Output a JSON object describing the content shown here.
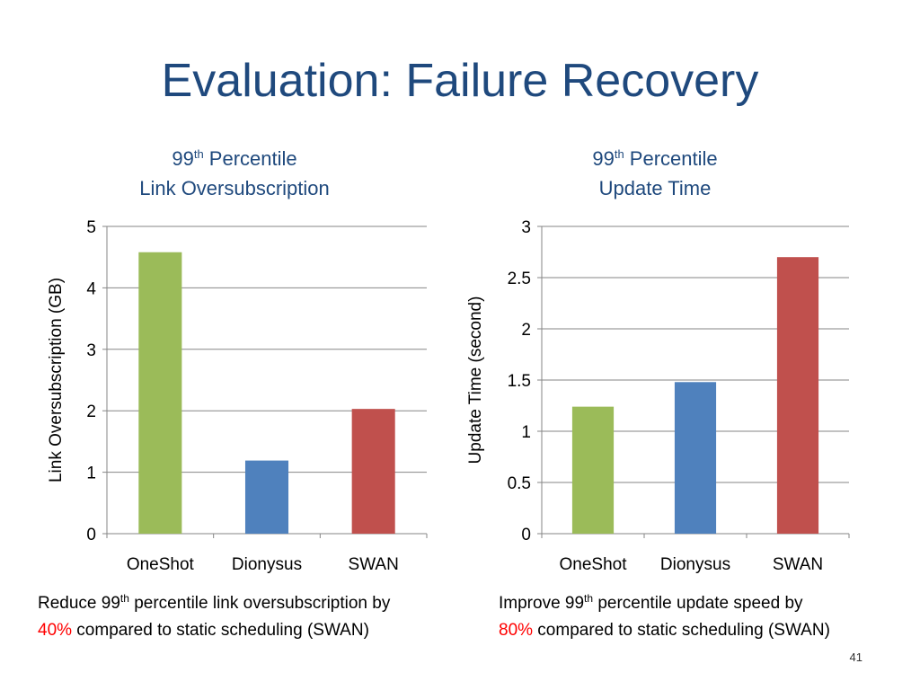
{
  "title": "Evaluation: Failure Recovery",
  "slide_number": "41",
  "colors": {
    "title": "#1f497d",
    "grid": "#868686",
    "highlight": "#ff0000"
  },
  "chart_data": [
    {
      "type": "bar",
      "title_lines": {
        "pre": "99",
        "sup": "th",
        "post": " Percentile",
        "line2": "Link Oversubscription"
      },
      "ylabel": "Link Oversubscription (GB)",
      "xlabel": "",
      "categories": [
        "OneShot",
        "Dionysus",
        "SWAN"
      ],
      "values": [
        4.58,
        1.19,
        2.03
      ],
      "bar_colors": [
        "#9bbb59",
        "#4f81bd",
        "#c0504d"
      ],
      "ylim": [
        0,
        5
      ],
      "yticks": [
        0,
        1,
        2,
        3,
        4,
        5
      ],
      "ytick_labels": [
        "0",
        "1",
        "2",
        "3",
        "4",
        "5"
      ],
      "grid": true
    },
    {
      "type": "bar",
      "title_lines": {
        "pre": "99",
        "sup": "th",
        "post": " Percentile",
        "line2": "Update Time"
      },
      "ylabel": "Update Time (second)",
      "xlabel": "",
      "categories": [
        "OneShot",
        "Dionysus",
        "SWAN"
      ],
      "values": [
        1.24,
        1.48,
        2.7
      ],
      "bar_colors": [
        "#9bbb59",
        "#4f81bd",
        "#c0504d"
      ],
      "ylim": [
        0,
        3
      ],
      "yticks": [
        0,
        0.5,
        1,
        1.5,
        2,
        2.5,
        3
      ],
      "ytick_labels": [
        "0",
        "0.5",
        "1",
        "1.5",
        "2",
        "2.5",
        "3"
      ],
      "grid": true
    }
  ],
  "captions": {
    "left": {
      "pre": "Reduce 99",
      "sup": "th",
      "post": " percentile link oversubscription by",
      "highlight": "40%",
      "rest": " compared to static scheduling (SWAN)"
    },
    "right": {
      "pre": "Improve 99",
      "sup": "th",
      "post": " percentile update speed by",
      "highlight": "80%",
      "rest": " compared to static scheduling (SWAN)"
    }
  }
}
